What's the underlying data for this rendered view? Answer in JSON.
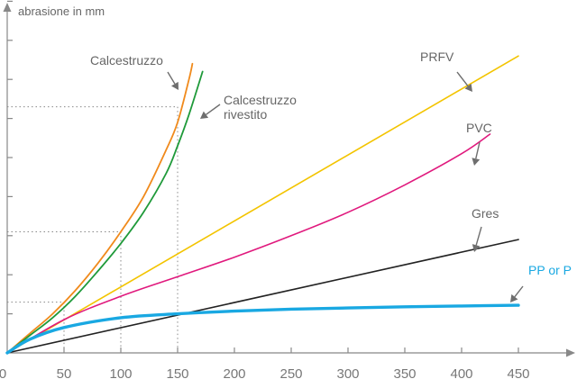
{
  "chart_data": {
    "type": "line",
    "title": "",
    "ylabel": "abrasione in mm",
    "xlabel": "",
    "xlim": [
      0,
      500
    ],
    "ylim": [
      0,
      9
    ],
    "x_ticks": [
      0,
      50,
      100,
      150,
      200,
      250,
      300,
      350,
      400,
      450
    ],
    "y_tick_values": [
      1,
      2,
      3,
      4,
      5,
      6,
      7,
      8,
      9
    ],
    "show_y_tick_labels": false,
    "grid": false,
    "reference_lines": [
      {
        "x": 100,
        "y": 3.1
      },
      {
        "x": 150,
        "y": 6.3
      },
      {
        "x": 50,
        "y": 1.3
      }
    ],
    "series": [
      {
        "name": "Calcestruzzo",
        "color": "#f08a1c",
        "width": 1.8,
        "x": [
          0,
          20,
          40,
          60,
          80,
          100,
          120,
          140,
          150,
          160,
          163
        ],
        "y": [
          0,
          0.5,
          1.0,
          1.6,
          2.3,
          3.1,
          4.0,
          5.2,
          5.9,
          7.0,
          7.4
        ]
      },
      {
        "name": "Calcestruzzo rivestito",
        "color": "#1f9a3a",
        "width": 1.8,
        "x": [
          0,
          20,
          40,
          60,
          80,
          100,
          120,
          140,
          150,
          160,
          172
        ],
        "y": [
          0,
          0.45,
          0.9,
          1.45,
          2.1,
          2.8,
          3.6,
          4.6,
          5.3,
          6.1,
          7.2
        ]
      },
      {
        "name": "PRFV",
        "color": "#f3c400",
        "width": 1.6,
        "x": [
          0,
          450
        ],
        "y": [
          0,
          7.6
        ]
      },
      {
        "name": "PVC",
        "color": "#e0197d",
        "width": 1.6,
        "x": [
          0,
          50,
          100,
          150,
          200,
          250,
          300,
          350,
          400,
          425
        ],
        "y": [
          0,
          0.85,
          1.45,
          1.95,
          2.45,
          3.0,
          3.6,
          4.3,
          5.1,
          5.6
        ]
      },
      {
        "name": "Gres",
        "color": "#222222",
        "width": 1.6,
        "x": [
          0,
          450
        ],
        "y": [
          0,
          2.9
        ]
      },
      {
        "name": "PP or P",
        "color": "#19a8e2",
        "width": 3.4,
        "x": [
          0,
          20,
          50,
          100,
          150,
          200,
          250,
          300,
          350,
          400,
          450
        ],
        "y": [
          0,
          0.35,
          0.65,
          0.9,
          1.0,
          1.07,
          1.12,
          1.15,
          1.18,
          1.2,
          1.22
        ]
      }
    ],
    "labels": [
      {
        "text": "Calcestruzzo",
        "lines": [
          "Calcestruzzo"
        ],
        "color": "#666666"
      },
      {
        "text": "Calcestruzzo rivestito",
        "lines": [
          "Calcestruzzo",
          "rivestito"
        ],
        "color": "#666666"
      },
      {
        "text": "PRFV",
        "lines": [
          "PRFV"
        ],
        "color": "#666666"
      },
      {
        "text": "PVC",
        "lines": [
          "PVC"
        ],
        "color": "#666666"
      },
      {
        "text": "Gres",
        "lines": [
          "Gres"
        ],
        "color": "#666666"
      },
      {
        "text": "PP or P",
        "lines": [
          "PP or P"
        ],
        "color": "#19a8e2"
      }
    ]
  }
}
